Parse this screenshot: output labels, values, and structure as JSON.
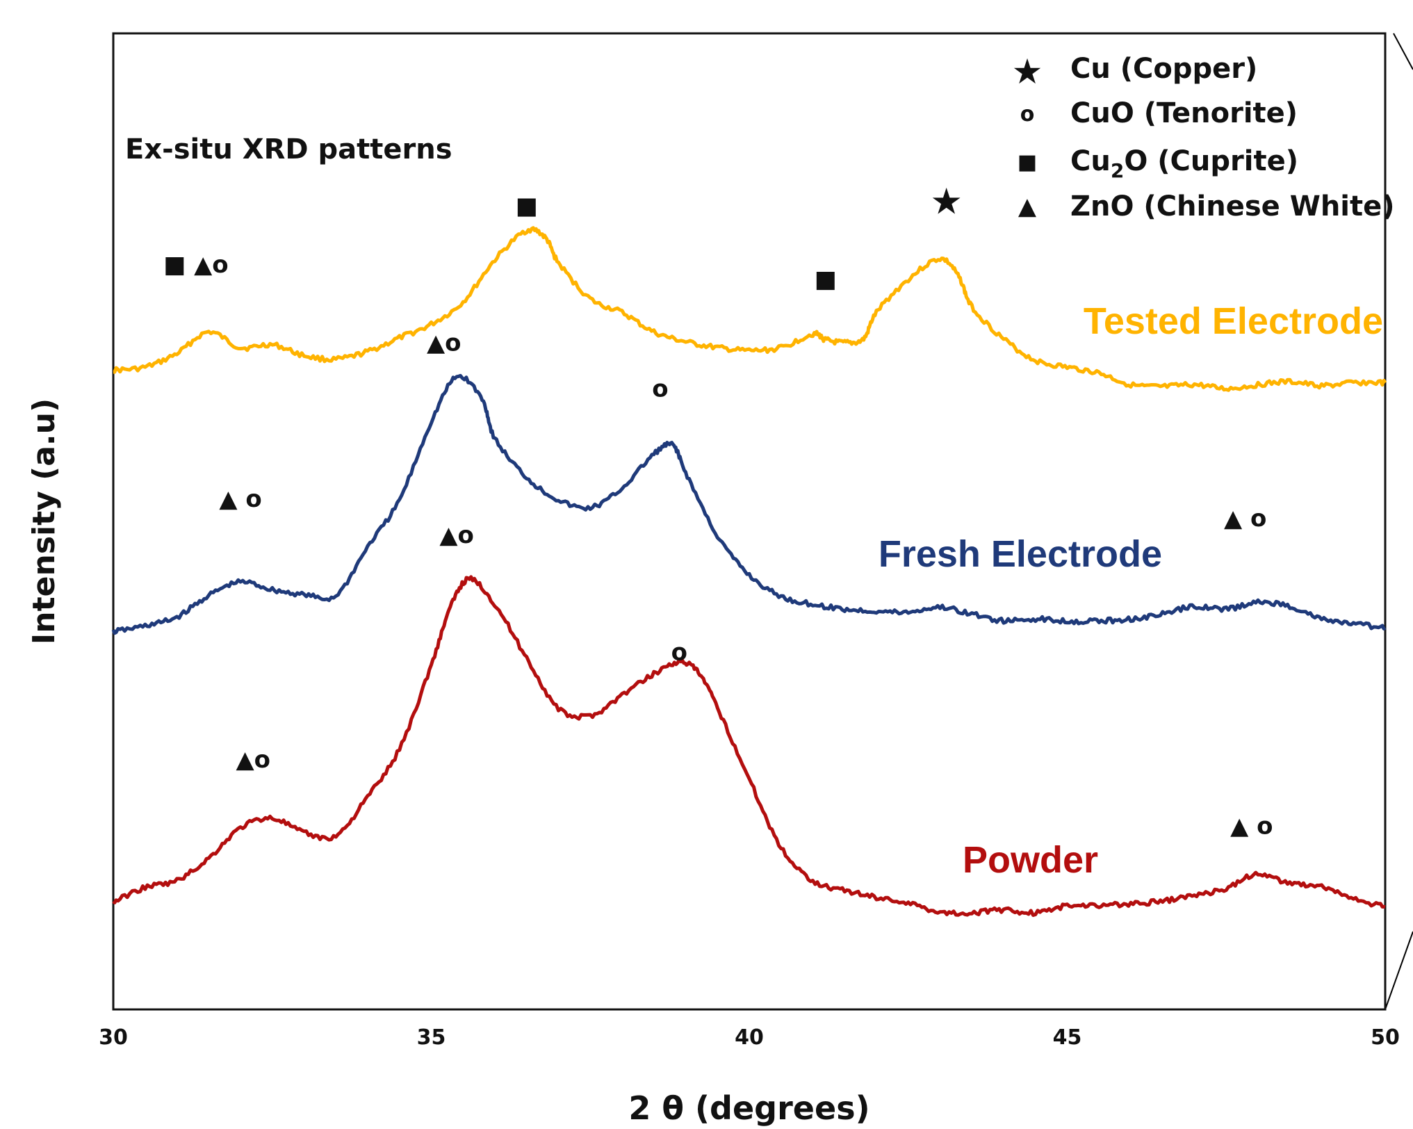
{
  "chart_data": {
    "type": "line",
    "title": "",
    "annotation_title": "Ex-situ XRD patterns",
    "xlabel": "2 θ (degrees)",
    "ylabel": "Intensity (a.u)",
    "xlim": [
      30,
      50
    ],
    "ylim": [
      0,
      100
    ],
    "x_ticks": [
      "30",
      "35",
      "40",
      "45",
      "50"
    ],
    "grid": false,
    "legend_position": "top-right",
    "legend": [
      {
        "symbol": "star",
        "glyph": "★",
        "label_main": "Cu (Copper)",
        "label_sub": "",
        "label_tail": ""
      },
      {
        "symbol": "circle",
        "glyph": "o",
        "label_main": "CuO (Tenorite)",
        "label_sub": "",
        "label_tail": ""
      },
      {
        "symbol": "square",
        "glyph": "■",
        "label_main": "Cu",
        "label_sub": "2",
        "label_tail": "O (Cuprite)"
      },
      {
        "symbol": "triangle",
        "glyph": "▲",
        "label_main": "ZnO (Chinese White)",
        "label_sub": "",
        "label_tail": ""
      }
    ],
    "series": [
      {
        "name": "Tested Electrode",
        "color": "#FFB300",
        "x": [
          30.0,
          30.5,
          31.0,
          31.5,
          32.0,
          32.5,
          33.0,
          33.5,
          34.0,
          34.5,
          35.0,
          35.5,
          36.0,
          36.5,
          36.8,
          37.0,
          37.5,
          38.0,
          38.5,
          39.0,
          39.5,
          40.0,
          40.5,
          41.0,
          41.2,
          41.5,
          41.8,
          42.0,
          42.5,
          43.0,
          43.3,
          43.5,
          44.0,
          44.5,
          45.0,
          45.5,
          46.0,
          46.5,
          47.0,
          47.5,
          48.0,
          48.5,
          49.0,
          49.5,
          50.0
        ],
        "y": [
          65.5,
          65.8,
          67.2,
          69.4,
          67.8,
          68.1,
          67.0,
          66.6,
          67.4,
          68.8,
          70.2,
          72.5,
          76.8,
          79.8,
          79.0,
          76.5,
          72.8,
          71.4,
          69.4,
          68.4,
          67.8,
          67.5,
          67.8,
          69.2,
          68.6,
          68.3,
          68.7,
          71.4,
          74.8,
          76.9,
          75.0,
          72.0,
          68.7,
          66.5,
          65.8,
          65.2,
          64.0,
          63.8,
          64.0,
          63.6,
          64.0,
          64.3,
          63.9,
          64.2,
          64.2
        ]
      },
      {
        "name": "Fresh Electrode",
        "color": "#1F3A7A",
        "x": [
          30.0,
          30.5,
          31.0,
          31.5,
          32.0,
          32.5,
          33.0,
          33.5,
          34.0,
          34.5,
          35.0,
          35.4,
          35.8,
          36.0,
          36.5,
          37.0,
          37.5,
          38.0,
          38.5,
          38.8,
          39.0,
          39.5,
          40.0,
          40.5,
          41.0,
          41.5,
          42.0,
          42.5,
          43.0,
          43.5,
          44.0,
          44.5,
          45.0,
          45.5,
          46.0,
          46.5,
          47.0,
          47.5,
          48.0,
          48.5,
          49.0,
          49.5,
          50.0
        ],
        "y": [
          38.7,
          39.3,
          40.2,
          42.4,
          43.8,
          43.0,
          42.5,
          42.4,
          47.4,
          52.2,
          60.2,
          64.8,
          62.5,
          58.5,
          54.5,
          52.2,
          51.4,
          53.4,
          56.9,
          57.8,
          55.0,
          48.5,
          44.5,
          42.3,
          41.5,
          41.0,
          40.8,
          40.7,
          41.2,
          40.5,
          39.8,
          40.0,
          39.8,
          39.8,
          40.0,
          40.5,
          41.3,
          41.0,
          41.7,
          41.3,
          40.0,
          39.5,
          39.1
        ]
      },
      {
        "name": "Powder",
        "color": "#B30E0E",
        "x": [
          30.0,
          30.5,
          31.0,
          31.5,
          32.0,
          32.5,
          33.0,
          33.5,
          34.0,
          34.5,
          35.0,
          35.3,
          35.6,
          36.0,
          36.5,
          37.0,
          37.5,
          38.0,
          38.5,
          38.9,
          39.2,
          39.5,
          40.0,
          40.5,
          41.0,
          41.5,
          42.0,
          42.5,
          43.0,
          43.5,
          44.0,
          44.5,
          45.0,
          45.5,
          46.0,
          46.5,
          47.0,
          47.5,
          48.0,
          48.5,
          49.0,
          49.5,
          50.0
        ],
        "y": [
          11.0,
          12.5,
          13.2,
          15.5,
          18.6,
          19.6,
          18.1,
          17.8,
          21.8,
          26.7,
          35.3,
          41.2,
          44.1,
          41.5,
          36.0,
          30.8,
          30.1,
          32.2,
          34.4,
          35.6,
          34.5,
          30.9,
          23.6,
          16.6,
          13.2,
          12.2,
          11.5,
          10.9,
          10.0,
          9.9,
          10.2,
          9.9,
          10.6,
          10.7,
          10.8,
          11.1,
          11.7,
          12.4,
          13.9,
          12.9,
          12.6,
          11.3,
          10.5
        ]
      }
    ],
    "series_labels": [
      {
        "text": "Tested Electrode",
        "color": "#FFB300"
      },
      {
        "text": "Fresh Electrode",
        "color": "#1F3A7A"
      },
      {
        "text": "Powder",
        "color": "#B30E0E"
      }
    ],
    "peak_markers": [
      {
        "x": 31.3,
        "y": 75.5,
        "glyphs": "■ ▲o"
      },
      {
        "x": 36.5,
        "y": 81.5,
        "glyphs": "■"
      },
      {
        "x": 41.2,
        "y": 74.0,
        "glyphs": "■"
      },
      {
        "x": 43.1,
        "y": 81.5,
        "glyphs": "★"
      },
      {
        "x": 35.2,
        "y": 67.5,
        "glyphs": "▲o"
      },
      {
        "x": 38.6,
        "y": 62.8,
        "glyphs": "o"
      },
      {
        "x": 32.0,
        "y": 51.5,
        "glyphs": "▲ o"
      },
      {
        "x": 47.8,
        "y": 49.5,
        "glyphs": "▲ o"
      },
      {
        "x": 35.4,
        "y": 47.8,
        "glyphs": "▲o"
      },
      {
        "x": 38.9,
        "y": 35.8,
        "glyphs": "o"
      },
      {
        "x": 32.2,
        "y": 24.8,
        "glyphs": "▲o"
      },
      {
        "x": 47.9,
        "y": 18.0,
        "glyphs": "▲ o"
      }
    ]
  }
}
